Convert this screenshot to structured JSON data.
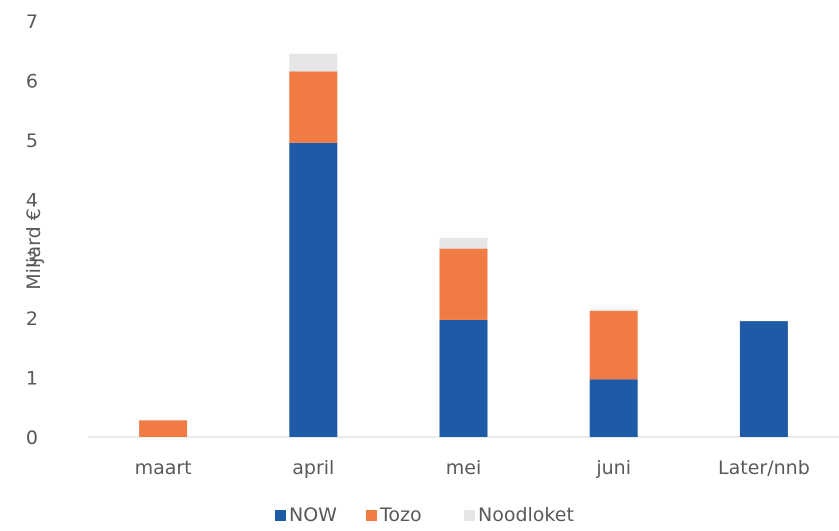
{
  "chart_data": {
    "type": "bar",
    "stacked": true,
    "categories": [
      "maart",
      "april",
      "mei",
      "juni",
      "Later/nnb"
    ],
    "series": [
      {
        "name": "NOW",
        "color": "#1f5aa6",
        "values": [
          0,
          4.95,
          1.97,
          0.97,
          1.95
        ]
      },
      {
        "name": "Tozo",
        "color": "#f07b45",
        "values": [
          0.28,
          1.2,
          1.2,
          1.15,
          0
        ]
      },
      {
        "name": "Noodloket",
        "color": "#e6e6e6",
        "values": [
          0,
          0.3,
          0.18,
          0.03,
          0
        ]
      }
    ],
    "ylabel": "Miljard €",
    "ylim": [
      0,
      7
    ],
    "yticks": [
      0,
      1,
      2,
      3,
      4,
      5,
      6,
      7
    ],
    "grid": false,
    "legend_position": "bottom"
  }
}
